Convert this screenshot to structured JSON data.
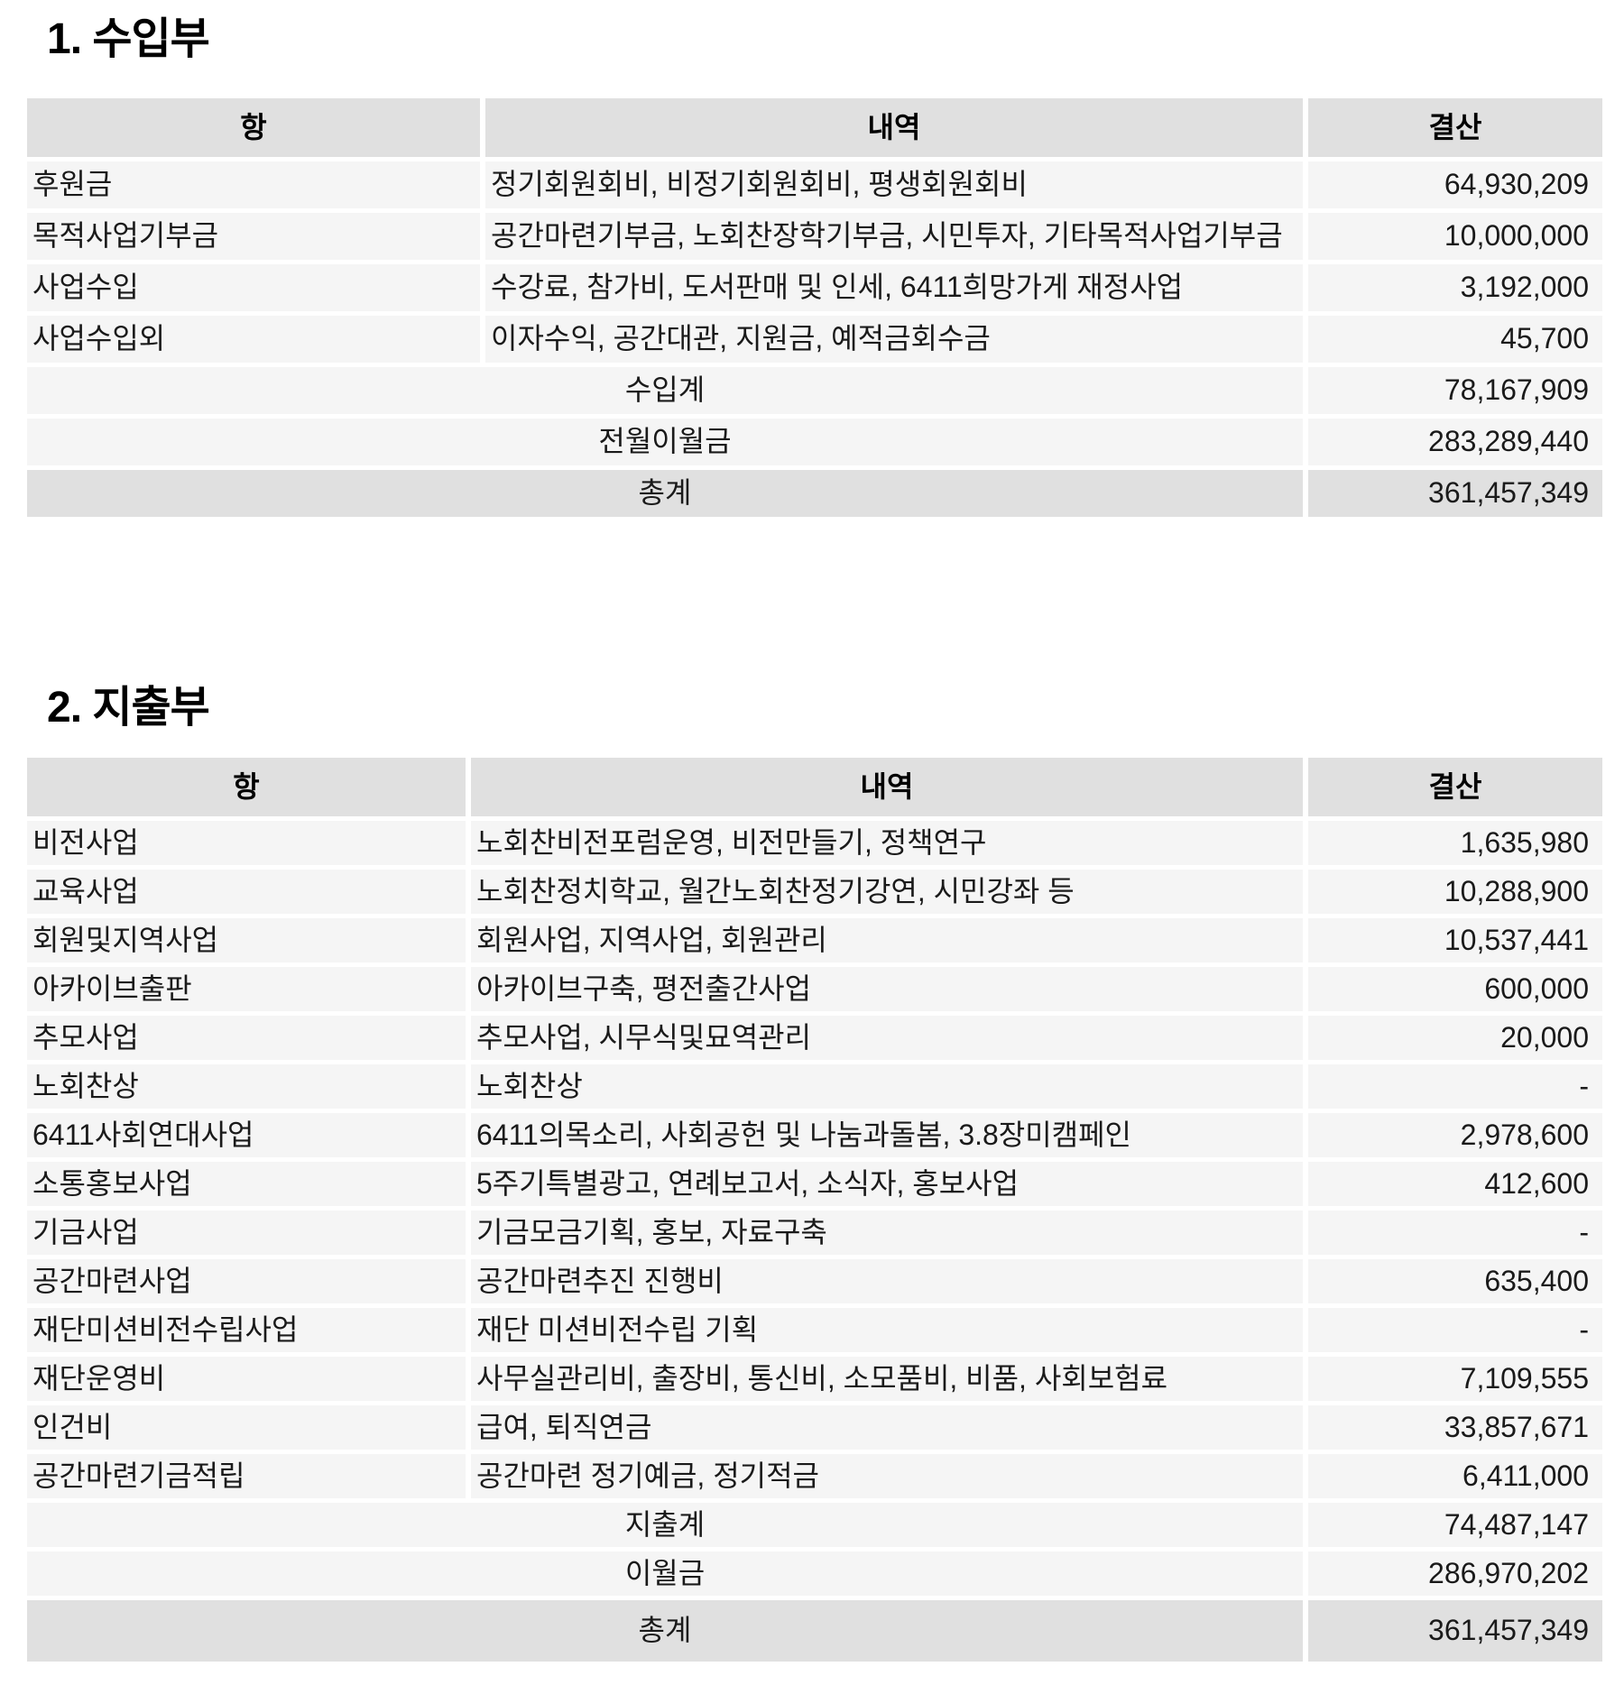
{
  "colors": {
    "page_bg": "#ffffff",
    "header_bg": "#e0e0e0",
    "row_bg": "#f5f5f5",
    "total_row_bg": "#e0e0e0",
    "text": "#1a1a1a"
  },
  "income": {
    "title": "1. 수입부",
    "headers": [
      "항",
      "내역",
      "결산"
    ],
    "rows": [
      {
        "item": "후원금",
        "detail": "정기회원회비, 비정기회원회비, 평생회원회비",
        "amount": "64,930,209"
      },
      {
        "item": "목적사업기부금",
        "detail": "공간마련기부금, 노회찬장학기부금, 시민투자, 기타목적사업기부금",
        "amount": "10,000,000"
      },
      {
        "item": "사업수입",
        "detail": "수강료, 참가비, 도서판매 및 인세, 6411희망가게 재정사업",
        "amount": "3,192,000"
      },
      {
        "item": "사업수입외",
        "detail": "이자수익, 공간대관, 지원금, 예적금회수금",
        "amount": "45,700"
      }
    ],
    "summary_rows": [
      {
        "label": "수입계",
        "amount": "78,167,909",
        "emphasis": false
      },
      {
        "label": "전월이월금",
        "amount": "283,289,440",
        "emphasis": false
      },
      {
        "label": "총계",
        "amount": "361,457,349",
        "emphasis": true
      }
    ]
  },
  "expense": {
    "title": "2. 지출부",
    "headers": [
      "항",
      "내역",
      "결산"
    ],
    "rows": [
      {
        "item": "비전사업",
        "detail": "노회찬비전포럼운영, 비전만들기, 정책연구",
        "amount": "1,635,980"
      },
      {
        "item": "교육사업",
        "detail": "노회찬정치학교, 월간노회찬정기강연, 시민강좌 등",
        "amount": "10,288,900"
      },
      {
        "item": "회원및지역사업",
        "detail": "회원사업, 지역사업, 회원관리",
        "amount": "10,537,441"
      },
      {
        "item": "아카이브출판",
        "detail": "아카이브구축, 평전출간사업",
        "amount": "600,000"
      },
      {
        "item": "추모사업",
        "detail": "추모사업, 시무식및묘역관리",
        "amount": "20,000"
      },
      {
        "item": "노회찬상",
        "detail": "노회찬상",
        "amount": "-"
      },
      {
        "item": "6411사회연대사업",
        "detail": "6411의목소리, 사회공헌 및 나눔과돌봄, 3.8장미캠페인",
        "amount": "2,978,600"
      },
      {
        "item": "소통홍보사업",
        "detail": "5주기특별광고, 연례보고서, 소식자, 홍보사업",
        "amount": "412,600"
      },
      {
        "item": "기금사업",
        "detail": "기금모금기획, 홍보, 자료구축",
        "amount": "-"
      },
      {
        "item": "공간마련사업",
        "detail": "공간마련추진 진행비",
        "amount": "635,400"
      },
      {
        "item": "재단미션비전수립사업",
        "detail": "재단 미션비전수립 기획",
        "amount": "-"
      },
      {
        "item": "재단운영비",
        "detail": "사무실관리비, 출장비, 통신비, 소모품비, 비품, 사회보험료",
        "amount": "7,109,555"
      },
      {
        "item": "인건비",
        "detail": "급여, 퇴직연금",
        "amount": "33,857,671"
      },
      {
        "item": "공간마련기금적립",
        "detail": "공간마련 정기예금, 정기적금",
        "amount": "6,411,000"
      }
    ],
    "summary_rows": [
      {
        "label": "지출계",
        "amount": "74,487,147",
        "emphasis": false
      },
      {
        "label": "이월금",
        "amount": "286,970,202",
        "emphasis": false
      },
      {
        "label": "총계",
        "amount": "361,457,349",
        "emphasis": true
      }
    ]
  }
}
